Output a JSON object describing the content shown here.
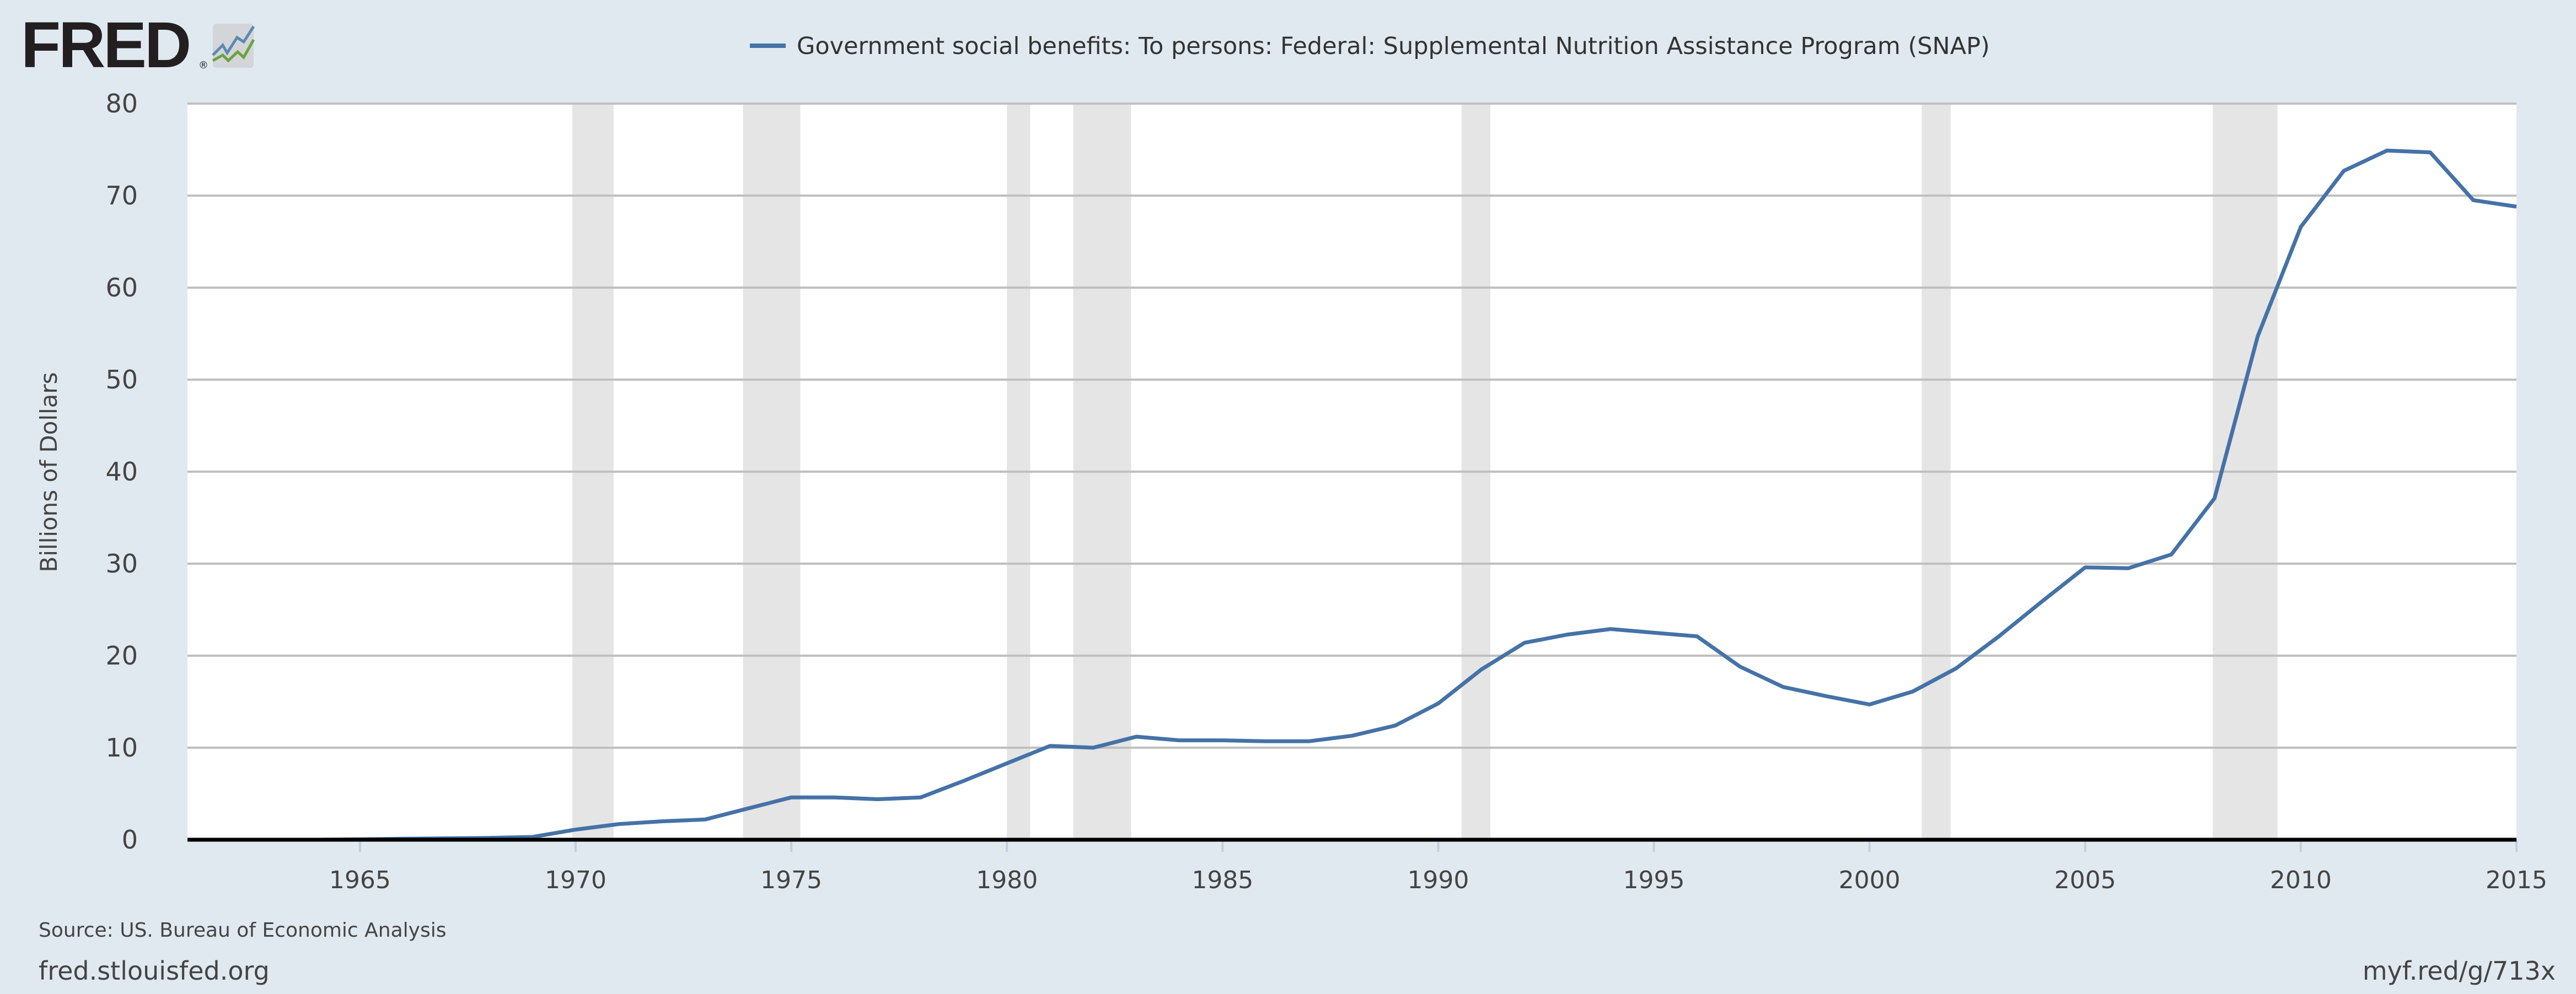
{
  "logo": {
    "text": "FRED",
    "registered": "®"
  },
  "footer": {
    "source": "Source: US. Bureau of Economic Analysis",
    "site": "fred.stlouisfed.org",
    "short_link": "myf.red/g/713x"
  },
  "chart_data": {
    "type": "line",
    "title": "",
    "legend_position": "top-center",
    "xlabel": "",
    "ylabel": "Billions of Dollars",
    "xlim": [
      1961,
      2015
    ],
    "ylim": [
      0,
      80
    ],
    "grid": true,
    "x_ticks": [
      "1965",
      "1970",
      "1975",
      "1980",
      "1985",
      "1990",
      "1995",
      "2000",
      "2005",
      "2010",
      "2015"
    ],
    "y_ticks": [
      "0",
      "10",
      "20",
      "30",
      "40",
      "50",
      "60",
      "70",
      "80"
    ],
    "colors": {
      "line": "#4572a7",
      "recession": "#e5e5e5",
      "background": "#e1e9f0",
      "grid": "#c0c0c0"
    },
    "recessions": [
      [
        1969.92,
        1970.88
      ],
      [
        1973.88,
        1975.21
      ],
      [
        1980.0,
        1980.54
      ],
      [
        1981.54,
        1982.88
      ],
      [
        1990.54,
        1991.21
      ],
      [
        2001.21,
        2001.88
      ],
      [
        2007.96,
        2009.46
      ]
    ],
    "series": [
      {
        "name": "Government social benefits: To persons: Federal: Supplemental Nutrition Assistance Program (SNAP)",
        "x": [
          1961,
          1962,
          1963,
          1964,
          1965,
          1966,
          1967,
          1968,
          1969,
          1970,
          1971,
          1972,
          1973,
          1974,
          1975,
          1976,
          1977,
          1978,
          1979,
          1980,
          1981,
          1982,
          1983,
          1984,
          1985,
          1986,
          1987,
          1988,
          1989,
          1990,
          1991,
          1992,
          1993,
          1994,
          1995,
          1996,
          1997,
          1998,
          1999,
          2000,
          2001,
          2002,
          2003,
          2004,
          2005,
          2006,
          2007,
          2008,
          2009,
          2010,
          2011,
          2012,
          2013,
          2014,
          2015
        ],
        "values": [
          0.0,
          0.0,
          0.0,
          0.0,
          0.05,
          0.1,
          0.15,
          0.2,
          0.3,
          1.1,
          1.7,
          2.0,
          2.2,
          3.4,
          4.6,
          4.6,
          4.4,
          4.6,
          6.4,
          8.3,
          10.2,
          10.0,
          11.2,
          10.8,
          10.8,
          10.7,
          10.7,
          11.3,
          12.4,
          14.8,
          18.5,
          21.4,
          22.3,
          22.9,
          22.5,
          22.1,
          18.8,
          16.6,
          15.6,
          14.7,
          16.1,
          18.6,
          22.1,
          25.9,
          29.6,
          29.5,
          31.0,
          37.1,
          54.7,
          66.6,
          72.7,
          74.9,
          74.7,
          69.5,
          68.8
        ]
      }
    ]
  }
}
